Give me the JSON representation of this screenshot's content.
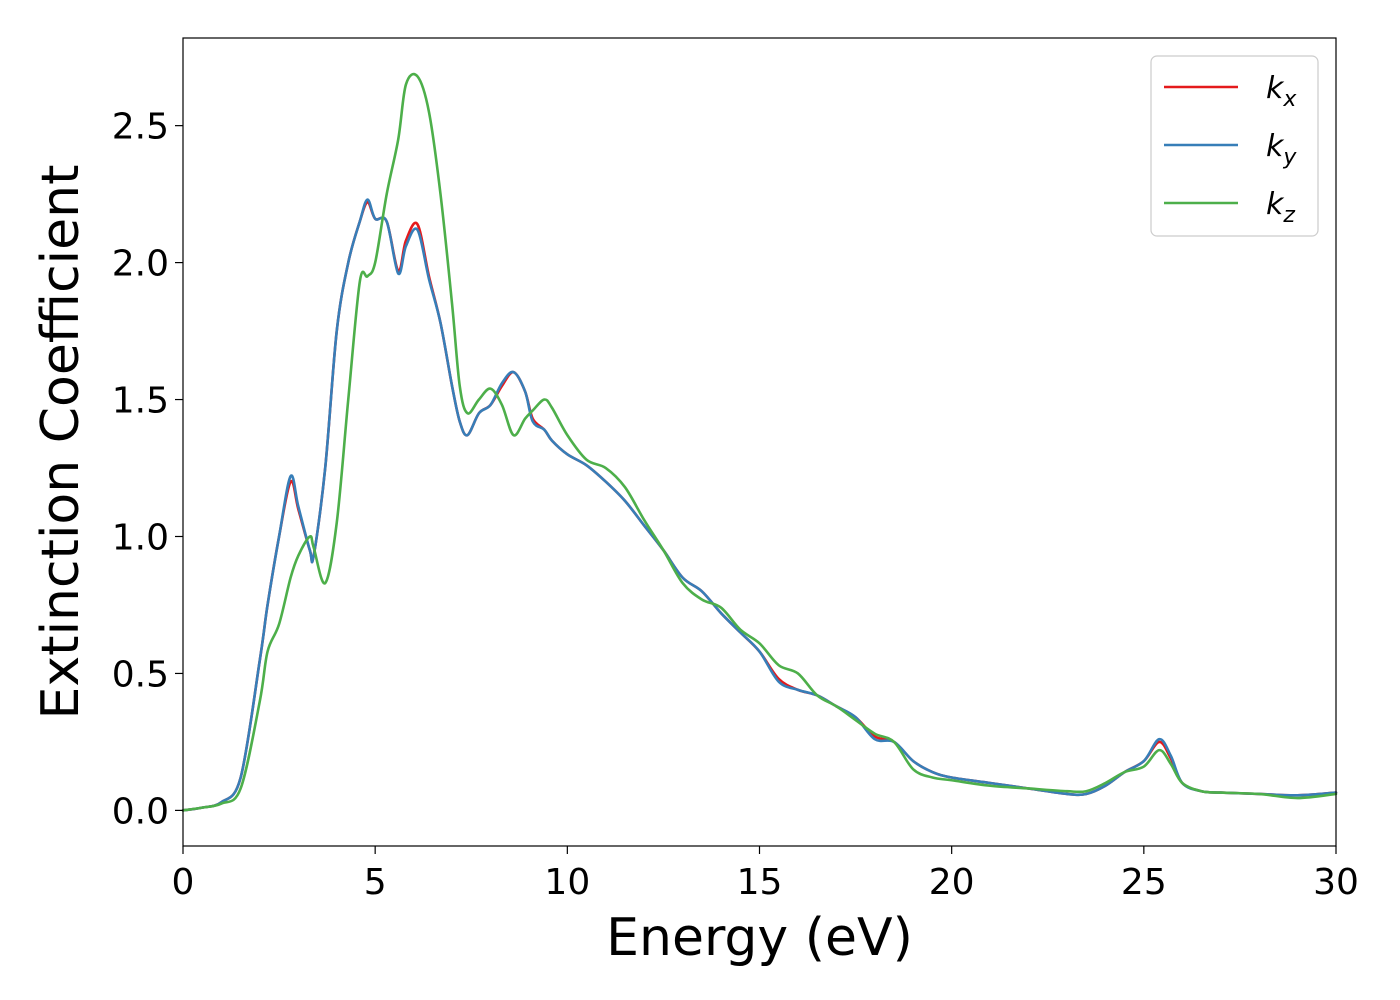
{
  "chart_data": {
    "type": "line",
    "title": "",
    "xlabel": "Energy (eV)",
    "ylabel": "Extinction Coefficient",
    "xlim": [
      0,
      30
    ],
    "ylim": [
      -0.13,
      2.82
    ],
    "xticks": [
      0,
      5,
      10,
      15,
      20,
      25,
      30
    ],
    "xtick_labels": [
      "0",
      "5",
      "10",
      "15",
      "20",
      "25",
      "30"
    ],
    "yticks": [
      0.0,
      0.5,
      1.0,
      1.5,
      2.0,
      2.5
    ],
    "ytick_labels": [
      "0.0",
      "0.5",
      "1.0",
      "1.5",
      "2.0",
      "2.5"
    ],
    "grid": false,
    "legend": {
      "position": "top-right"
    },
    "x": [
      0,
      0.5,
      1.0,
      1.5,
      2.0,
      2.2,
      2.5,
      2.8,
      3.0,
      3.3,
      3.4,
      3.7,
      4.0,
      4.3,
      4.6,
      4.8,
      5.0,
      5.3,
      5.6,
      5.8,
      6.1,
      6.4,
      6.7,
      7.0,
      7.2,
      7.4,
      7.7,
      8.0,
      8.3,
      8.6,
      8.9,
      9.1,
      9.4,
      9.6,
      10.0,
      10.5,
      11.0,
      11.5,
      12.0,
      12.5,
      13.0,
      13.5,
      14.0,
      14.5,
      15.0,
      15.5,
      16.0,
      16.5,
      17.0,
      17.5,
      18.0,
      18.5,
      19.0,
      19.5,
      20.0,
      21.0,
      22.0,
      23.0,
      23.5,
      24.0,
      24.5,
      25.0,
      25.4,
      25.7,
      26.0,
      26.5,
      27.0,
      28.0,
      29.0,
      30.0
    ],
    "series": [
      {
        "name": "k_x",
        "color": "#e41a1c",
        "values": [
          0.0,
          0.01,
          0.03,
          0.12,
          0.55,
          0.75,
          1.0,
          1.2,
          1.1,
          0.95,
          0.93,
          1.25,
          1.75,
          2.0,
          2.15,
          2.22,
          2.16,
          2.15,
          1.97,
          2.08,
          2.14,
          1.95,
          1.78,
          1.55,
          1.42,
          1.37,
          1.45,
          1.48,
          1.55,
          1.6,
          1.53,
          1.43,
          1.39,
          1.35,
          1.3,
          1.26,
          1.2,
          1.13,
          1.04,
          0.95,
          0.85,
          0.8,
          0.72,
          0.65,
          0.58,
          0.48,
          0.44,
          0.42,
          0.38,
          0.34,
          0.27,
          0.25,
          0.18,
          0.14,
          0.12,
          0.1,
          0.08,
          0.06,
          0.06,
          0.09,
          0.14,
          0.18,
          0.25,
          0.19,
          0.1,
          0.07,
          0.065,
          0.06,
          0.055,
          0.065
        ]
      },
      {
        "name": "k_y",
        "color": "#377eb8",
        "values": [
          0.0,
          0.01,
          0.03,
          0.12,
          0.55,
          0.75,
          1.0,
          1.22,
          1.11,
          0.95,
          0.93,
          1.25,
          1.75,
          2.0,
          2.15,
          2.23,
          2.16,
          2.15,
          1.96,
          2.06,
          2.12,
          1.94,
          1.78,
          1.55,
          1.42,
          1.37,
          1.45,
          1.48,
          1.56,
          1.6,
          1.53,
          1.42,
          1.39,
          1.35,
          1.3,
          1.26,
          1.2,
          1.13,
          1.04,
          0.95,
          0.85,
          0.8,
          0.72,
          0.65,
          0.58,
          0.47,
          0.44,
          0.42,
          0.38,
          0.34,
          0.26,
          0.25,
          0.18,
          0.14,
          0.12,
          0.1,
          0.08,
          0.06,
          0.06,
          0.09,
          0.14,
          0.18,
          0.26,
          0.2,
          0.1,
          0.07,
          0.065,
          0.06,
          0.055,
          0.065
        ]
      },
      {
        "name": "k_z",
        "color": "#4daf4a",
        "values": [
          0.0,
          0.01,
          0.025,
          0.08,
          0.4,
          0.58,
          0.68,
          0.85,
          0.93,
          1.0,
          0.96,
          0.83,
          1.05,
          1.5,
          1.93,
          1.95,
          2.0,
          2.25,
          2.45,
          2.65,
          2.68,
          2.55,
          2.25,
          1.85,
          1.55,
          1.45,
          1.5,
          1.54,
          1.48,
          1.37,
          1.43,
          1.46,
          1.5,
          1.47,
          1.37,
          1.28,
          1.25,
          1.18,
          1.06,
          0.95,
          0.83,
          0.77,
          0.74,
          0.66,
          0.61,
          0.53,
          0.5,
          0.42,
          0.38,
          0.33,
          0.28,
          0.25,
          0.15,
          0.12,
          0.11,
          0.09,
          0.08,
          0.07,
          0.07,
          0.1,
          0.14,
          0.16,
          0.22,
          0.17,
          0.1,
          0.07,
          0.065,
          0.06,
          0.045,
          0.06
        ]
      }
    ]
  },
  "legend_labels": [
    {
      "base": "k",
      "sub": "x"
    },
    {
      "base": "k",
      "sub": "y"
    },
    {
      "base": "k",
      "sub": "z"
    }
  ]
}
